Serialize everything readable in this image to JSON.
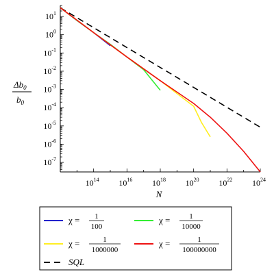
{
  "chart_data": {
    "type": "line",
    "title": "",
    "xlabel": "N",
    "ylabel_numerator": "Δb",
    "ylabel_numerator_sub": "0",
    "ylabel_denominator": "b",
    "ylabel_denominator_sub": "0",
    "x_scale": "log",
    "y_scale": "log",
    "xlim": [
      1000000000000.0,
      1e+24
    ],
    "ylim": [
      3e-08,
      40
    ],
    "x_ticks": [
      {
        "base": "10",
        "exp": "14",
        "value": 100000000000000.0
      },
      {
        "base": "10",
        "exp": "16",
        "value": 1e+16
      },
      {
        "base": "10",
        "exp": "18",
        "value": 1e+18
      },
      {
        "base": "10",
        "exp": "20",
        "value": 1e+20
      },
      {
        "base": "10",
        "exp": "22",
        "value": 1e+22
      },
      {
        "base": "10",
        "exp": "24",
        "value": 1e+24
      }
    ],
    "y_ticks": [
      {
        "base": "10",
        "exp": "1",
        "value": 10
      },
      {
        "base": "10",
        "exp": "0",
        "value": 1
      },
      {
        "base": "10",
        "exp": "-1",
        "value": 0.1
      },
      {
        "base": "10",
        "exp": "-2",
        "value": 0.01
      },
      {
        "base": "10",
        "exp": "-3",
        "value": 0.001
      },
      {
        "base": "10",
        "exp": "-4",
        "value": 0.0001
      },
      {
        "base": "10",
        "exp": "-5",
        "value": 1e-05
      },
      {
        "base": "10",
        "exp": "-6",
        "value": 1e-06
      },
      {
        "base": "10",
        "exp": "-7",
        "value": 1e-07
      }
    ],
    "grid": false,
    "legend_placement": "bottom",
    "series": [
      {
        "label_prefix": "χ = ",
        "label_num": "1",
        "label_den": "100",
        "color": "#2222cc",
        "dashed": false,
        "x": [
          1000000000000.0,
          10000000000000.0,
          100000000000000.0,
          1000000000000000.0
        ],
        "y": [
          30,
          6,
          1.3,
          0.25
        ]
      },
      {
        "label_prefix": "χ = ",
        "label_num": "1",
        "label_den": "10000",
        "color": "#33ee33",
        "dashed": false,
        "x": [
          1000000000000.0,
          10000000000000.0,
          100000000000000.0,
          1000000000000000.0,
          1e+16,
          1e+17,
          3e+17,
          1e+18
        ],
        "y": [
          30,
          6,
          1.3,
          0.3,
          0.06,
          0.012,
          0.0035,
          0.0009
        ]
      },
      {
        "label_prefix": "χ = ",
        "label_num": "1",
        "label_den": "1000000",
        "color": "#ffee22",
        "dashed": false,
        "x": [
          1000000000000.0,
          100000000000000.0,
          1e+16,
          1e+18,
          1e+19,
          1e+20,
          3e+20,
          1e+21
        ],
        "y": [
          30,
          1.3,
          0.06,
          0.003,
          0.0006,
          0.00012,
          1.5e-05,
          2.5e-06
        ]
      },
      {
        "label_prefix": "χ = ",
        "label_num": "1",
        "label_den": "100000000",
        "color": "#ee1111",
        "dashed": false,
        "x": [
          1000000000000.0,
          100000000000000.0,
          1e+16,
          1e+18,
          1e+20,
          1e+21,
          1e+22,
          1e+23,
          1e+24
        ],
        "y": [
          30,
          1.3,
          0.06,
          0.003,
          0.00017,
          3e-05,
          4e-06,
          4e-07,
          3e-08
        ]
      },
      {
        "label": "SQL",
        "color": "#000000",
        "dashed": true,
        "x": [
          1000000000000.0,
          1e+24
        ],
        "y": [
          30,
          8.5e-06
        ]
      }
    ]
  }
}
